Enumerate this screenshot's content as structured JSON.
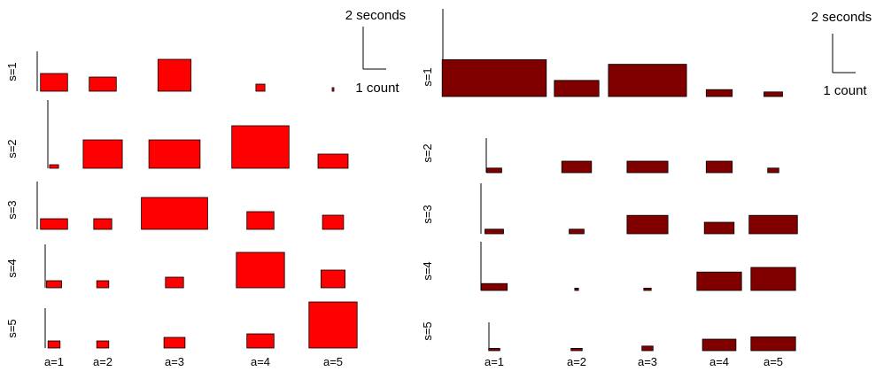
{
  "chart_data": [
    {
      "type": "bar",
      "panel": "left",
      "color": "#ff0000",
      "scale_bar": {
        "y_label": "2 seconds",
        "x_label": "1 count"
      },
      "x_tick_labels": [
        "a=1",
        "a=2",
        "a=3",
        "a=4",
        "a=5"
      ],
      "row_labels": [
        "s=1",
        "s=2",
        "s=3",
        "s=4",
        "s=5"
      ],
      "rows": [
        {
          "label": "s=1",
          "bars": [
            {
              "w": 0.9,
              "h": 0.5
            },
            {
              "w": 0.9,
              "h": 0.4
            },
            {
              "w": 1.1,
              "h": 0.9
            },
            {
              "w": 0.3,
              "h": 0.2
            },
            {
              "w": 0.05,
              "h": 0.1
            }
          ]
        },
        {
          "label": "s=2",
          "bars": [
            {
              "w": 0.3,
              "h": 0.1
            },
            {
              "w": 1.3,
              "h": 0.8
            },
            {
              "w": 1.7,
              "h": 0.8
            },
            {
              "w": 1.9,
              "h": 1.2
            },
            {
              "w": 1.0,
              "h": 0.4
            }
          ]
        },
        {
          "label": "s=3",
          "bars": [
            {
              "w": 0.9,
              "h": 0.3
            },
            {
              "w": 0.6,
              "h": 0.3
            },
            {
              "w": 2.2,
              "h": 0.9
            },
            {
              "w": 0.9,
              "h": 0.5
            },
            {
              "w": 0.7,
              "h": 0.4
            }
          ]
        },
        {
          "label": "s=4",
          "bars": [
            {
              "w": 0.5,
              "h": 0.2
            },
            {
              "w": 0.4,
              "h": 0.2
            },
            {
              "w": 0.6,
              "h": 0.3
            },
            {
              "w": 1.6,
              "h": 1.0
            },
            {
              "w": 0.8,
              "h": 0.5
            }
          ]
        },
        {
          "label": "s=5",
          "bars": [
            {
              "w": 0.4,
              "h": 0.2
            },
            {
              "w": 0.4,
              "h": 0.2
            },
            {
              "w": 0.7,
              "h": 0.3
            },
            {
              "w": 0.9,
              "h": 0.4
            },
            {
              "w": 1.6,
              "h": 1.3
            }
          ]
        }
      ]
    },
    {
      "type": "bar",
      "panel": "right",
      "color": "#800000",
      "scale_bar": {
        "y_label": "2 seconds",
        "x_label": "1 count"
      },
      "x_tick_labels": [
        "a=1",
        "a=2",
        "a=3",
        "a=4",
        "a=5"
      ],
      "row_labels": [
        "s=1",
        "s=2",
        "s=3",
        "s=4",
        "s=5"
      ],
      "rows": [
        {
          "label": "s=1",
          "bars": [
            {
              "w": 2.8,
              "h": 1.6
            },
            {
              "w": 1.2,
              "h": 0.7
            },
            {
              "w": 2.1,
              "h": 1.4
            },
            {
              "w": 0.7,
              "h": 0.3
            },
            {
              "w": 0.5,
              "h": 0.2
            }
          ]
        },
        {
          "label": "s=2",
          "bars": [
            {
              "w": 0.4,
              "h": 0.2
            },
            {
              "w": 0.8,
              "h": 0.5
            },
            {
              "w": 1.1,
              "h": 0.5
            },
            {
              "w": 0.7,
              "h": 0.5
            },
            {
              "w": 0.3,
              "h": 0.2
            }
          ]
        },
        {
          "label": "s=3",
          "bars": [
            {
              "w": 0.5,
              "h": 0.2
            },
            {
              "w": 0.4,
              "h": 0.2
            },
            {
              "w": 1.1,
              "h": 0.8
            },
            {
              "w": 0.8,
              "h": 0.5
            },
            {
              "w": 1.3,
              "h": 0.8
            }
          ]
        },
        {
          "label": "s=4",
          "bars": [
            {
              "w": 0.7,
              "h": 0.3
            },
            {
              "w": 0.1,
              "h": 0.1
            },
            {
              "w": 0.2,
              "h": 0.1
            },
            {
              "w": 1.2,
              "h": 0.8
            },
            {
              "w": 1.2,
              "h": 1.0
            }
          ]
        },
        {
          "label": "s=5",
          "bars": [
            {
              "w": 0.3,
              "h": 0.1
            },
            {
              "w": 0.3,
              "h": 0.1
            },
            {
              "w": 0.3,
              "h": 0.2
            },
            {
              "w": 0.9,
              "h": 0.5
            },
            {
              "w": 1.2,
              "h": 0.6
            }
          ]
        }
      ]
    }
  ]
}
